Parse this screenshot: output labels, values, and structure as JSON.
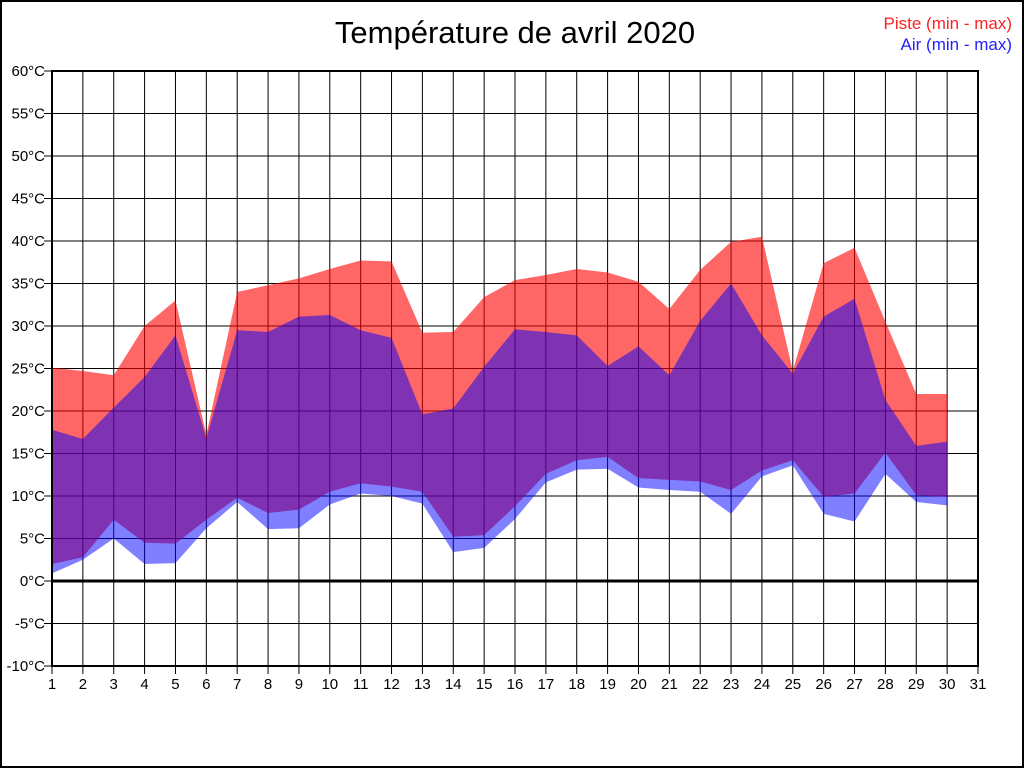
{
  "figure": {
    "title": "Température de avril 2020",
    "legend_piste": {
      "label": "Piste (min - max)",
      "color": "#ff2222"
    },
    "legend_air": {
      "label": "Air (min - max)",
      "color": "#2222ff"
    }
  },
  "chart_data": {
    "type": "area",
    "title": "Température de avril 2020",
    "legend_position": "top-right",
    "grid": true,
    "zero_line": true,
    "xlim": [
      1,
      31
    ],
    "ylim": [
      -10,
      60
    ],
    "y_tick_step": 5,
    "y_tick_labels": [
      "60°C",
      "55°C",
      "50°C",
      "45°C",
      "40°C",
      "35°C",
      "30°C",
      "25°C",
      "20°C",
      "15°C",
      "10°C",
      "5°C",
      "0°C",
      "-5°C",
      "-10°C"
    ],
    "x_tick_labels": [
      "1",
      "2",
      "3",
      "4",
      "5",
      "6",
      "7",
      "8",
      "9",
      "10",
      "11",
      "12",
      "13",
      "14",
      "15",
      "16",
      "17",
      "18",
      "19",
      "20",
      "21",
      "22",
      "23",
      "24",
      "25",
      "26",
      "27",
      "28",
      "29",
      "30",
      "31"
    ],
    "x": [
      1,
      2,
      3,
      4,
      5,
      6,
      7,
      8,
      9,
      10,
      11,
      12,
      13,
      14,
      15,
      16,
      17,
      18,
      19,
      20,
      21,
      22,
      23,
      24,
      25,
      26,
      27,
      28,
      29,
      30
    ],
    "series": [
      {
        "name": "Piste (min - max)",
        "fill": "rgba(255,0,0,0.6)",
        "max": [
          25.1,
          24.7,
          24.2,
          30.0,
          33.0,
          17.2,
          34.0,
          34.8,
          35.6,
          36.7,
          37.7,
          37.6,
          29.2,
          29.3,
          33.4,
          35.4,
          36.0,
          36.7,
          36.3,
          35.2,
          32.0,
          36.6,
          39.9,
          40.5,
          24.7,
          37.4,
          39.2,
          30.5,
          22.0,
          22.0
        ],
        "min": [
          2.0,
          2.8,
          7.2,
          4.5,
          4.4,
          7.2,
          9.8,
          8.0,
          8.4,
          10.5,
          11.5,
          11.1,
          10.5,
          5.2,
          5.4,
          8.8,
          12.6,
          14.2,
          14.6,
          12.1,
          11.9,
          11.7,
          10.7,
          13.0,
          14.2,
          9.9,
          10.3,
          15.1,
          10.1,
          9.9
        ]
      },
      {
        "name": "Air (min - max)",
        "fill": "rgba(0,0,255,0.5)",
        "max": [
          17.8,
          16.7,
          20.4,
          24.0,
          28.9,
          16.8,
          29.5,
          29.3,
          31.1,
          31.3,
          29.5,
          28.6,
          19.6,
          20.3,
          25.2,
          29.6,
          29.3,
          28.9,
          25.3,
          27.6,
          24.2,
          30.6,
          35.0,
          28.9,
          24.4,
          31.1,
          33.2,
          21.3,
          15.9,
          16.4
        ],
        "min": [
          0.9,
          2.5,
          5.0,
          2.0,
          2.1,
          6.2,
          9.3,
          6.1,
          6.2,
          9.0,
          10.3,
          10.0,
          9.1,
          3.4,
          3.9,
          7.3,
          11.6,
          13.1,
          13.2,
          11.0,
          10.7,
          10.5,
          7.9,
          12.3,
          13.6,
          7.9,
          7.0,
          12.6,
          9.3,
          8.9
        ]
      }
    ]
  }
}
